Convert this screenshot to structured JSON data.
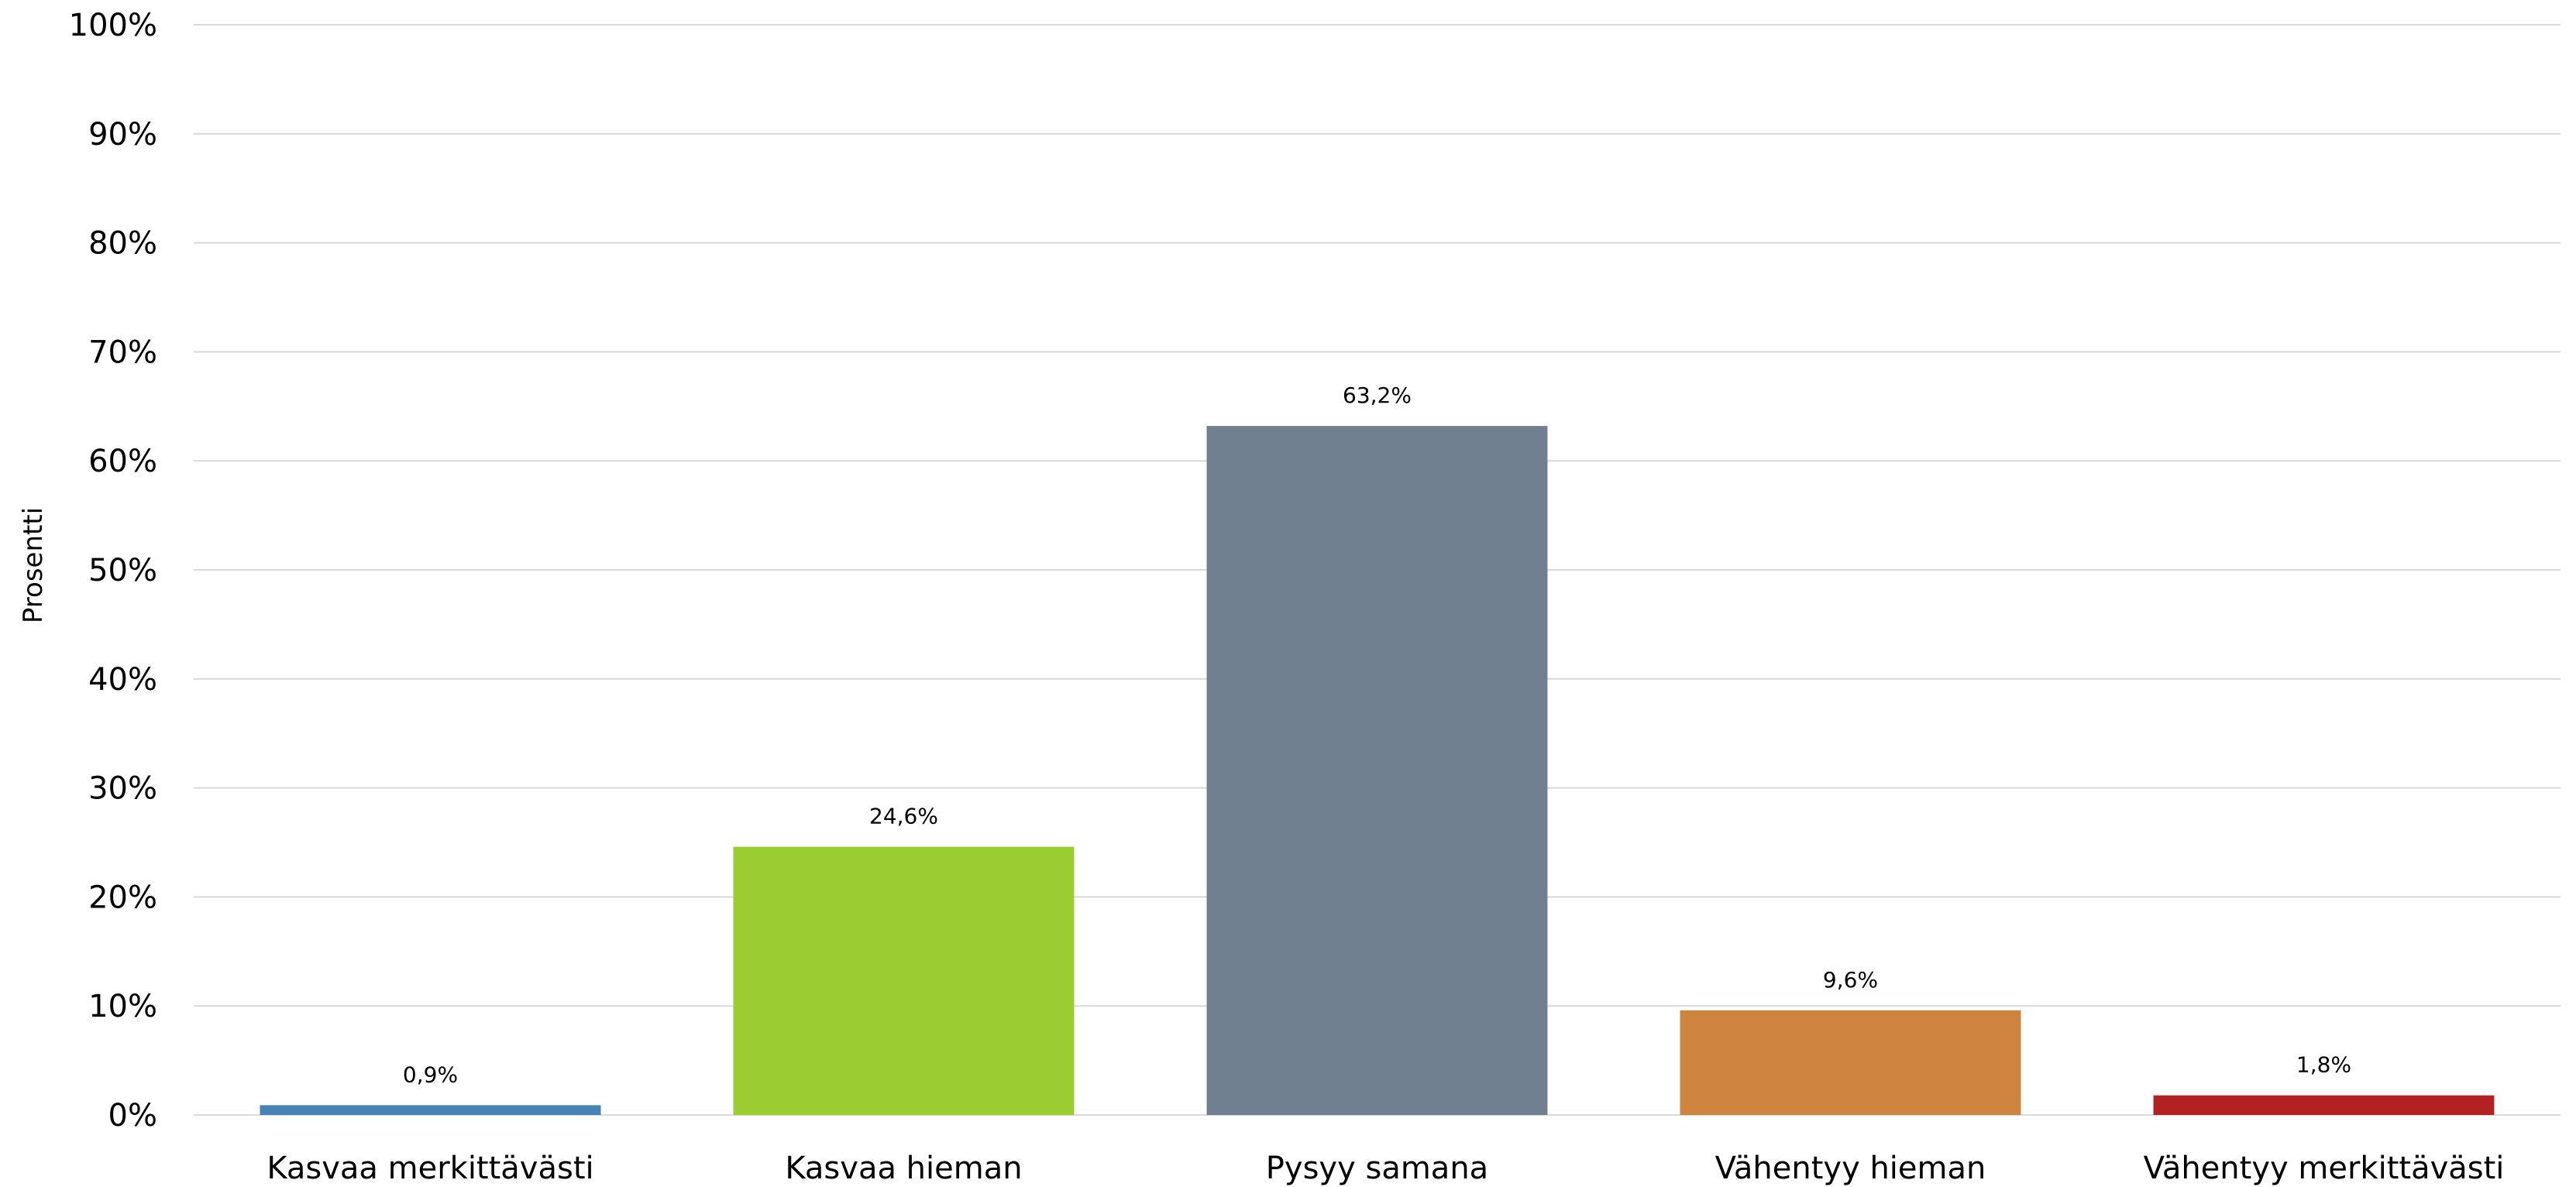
{
  "chart_data": {
    "type": "bar",
    "title": "",
    "xlabel": "",
    "ylabel": "Prosentti",
    "ylim": [
      0,
      100
    ],
    "ytick_values": [
      0,
      10,
      20,
      30,
      40,
      50,
      60,
      70,
      80,
      90,
      100
    ],
    "ytick_labels": [
      "0%",
      "10%",
      "20%",
      "30%",
      "40%",
      "50%",
      "60%",
      "70%",
      "80%",
      "90%",
      "100%"
    ],
    "grid": true,
    "legend": "none",
    "categories": [
      "Kasvaa merkittävästi",
      "Kasvaa hieman",
      "Pysyy samana",
      "Vähentyy hieman",
      "Vähentyy merkittävästi"
    ],
    "values": [
      0.9,
      24.6,
      63.2,
      9.6,
      1.8
    ],
    "data_labels": [
      "0,9%",
      "24,6%",
      "63,2%",
      "9,6%",
      "1,8%"
    ],
    "colors": [
      "#4682b4",
      "#9acd32",
      "#708090",
      "#cd853f",
      "#b22222"
    ],
    "gridline_color": "#d9d9d9"
  }
}
